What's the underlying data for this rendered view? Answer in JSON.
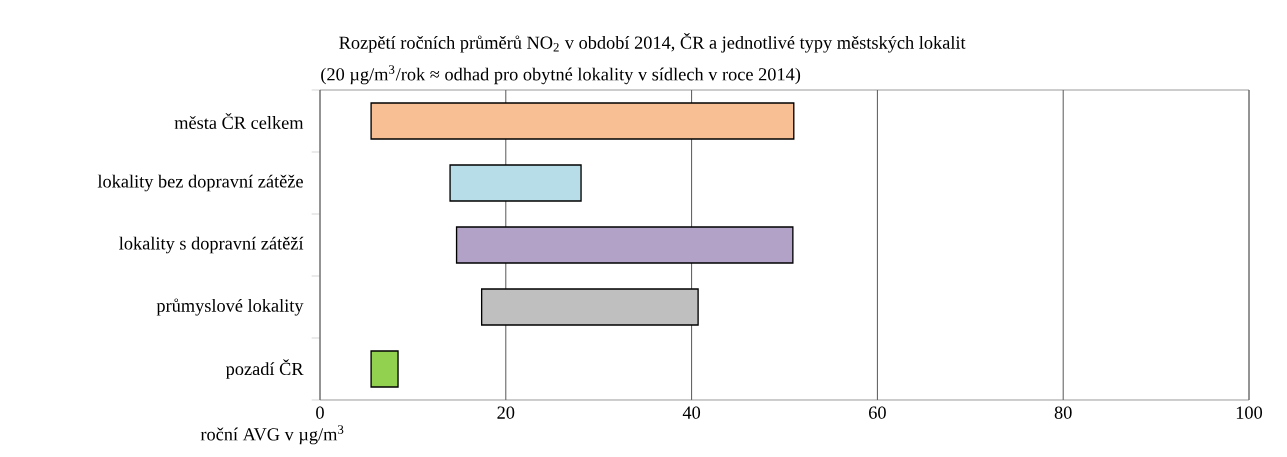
{
  "chart_data": {
    "type": "bar",
    "orientation": "horizontal",
    "title": "Rozpětí ročních průměrů NO$_{2}$ v období  2014, ČR a jednotlivé typy městských lokalit",
    "subtitle": "(20 µg/m$^{3}$/rok ≈ odhad pro obytné lokality v sídlech v roce 2014)",
    "xlabel": "roční AVG v µg/m$^{3}$",
    "categories": [
      "města ČR celkem",
      "lokality bez dopravní zátěže",
      "lokality s dopravní zátěží",
      "průmyslové lokality",
      "pozadí ČR"
    ],
    "base": [
      5.5,
      14,
      14.7,
      17.4,
      5.5
    ],
    "values": [
      45.5,
      14.1,
      36.2,
      23.3,
      2.9
    ],
    "colors": [
      "#f9bf94",
      "#b7dde8",
      "#b3a2c7",
      "#bfbfbf",
      "#92d050"
    ],
    "xlim": [
      0,
      100
    ],
    "xticks": [
      0,
      20,
      40,
      60,
      80,
      100
    ],
    "grid": "x"
  }
}
